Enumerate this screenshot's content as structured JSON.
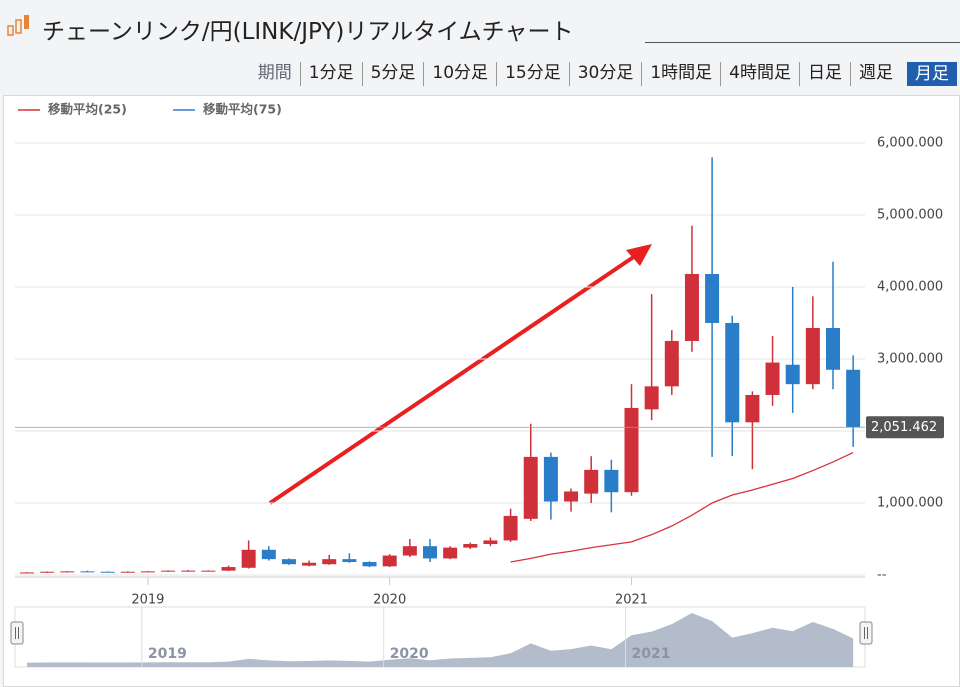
{
  "header": {
    "title": "チェーンリンク/円(LINK/JPY)リアルタイムチャート",
    "tabs": [
      "期間",
      "1分足",
      "5分足",
      "10分足",
      "15分足",
      "30分足",
      "1時間足",
      "4時間足",
      "日足",
      "週足",
      "月足"
    ],
    "active_tab": 10
  },
  "chart_data": {
    "type": "candlestick",
    "categories": [
      null,
      null,
      null,
      null,
      null,
      null,
      "2019",
      null,
      null,
      null,
      null,
      null,
      null,
      null,
      null,
      null,
      null,
      null,
      "2020",
      null,
      null,
      null,
      null,
      null,
      null,
      null,
      null,
      null,
      null,
      null,
      "2021",
      null,
      null,
      null,
      null,
      null,
      null,
      null,
      null,
      null,
      null,
      null
    ],
    "open": [
      30,
      35,
      45,
      50,
      45,
      40,
      45,
      50,
      60,
      60,
      60,
      100,
      350,
      220,
      130,
      150,
      220,
      180,
      120,
      270,
      400,
      230,
      380,
      430,
      480,
      780,
      1640,
      1020,
      1130,
      1460,
      1150,
      2300,
      2620,
      3250,
      4180,
      3500,
      2120,
      2500,
      2920,
      2650,
      3430,
      2850
    ],
    "high": [
      40,
      50,
      55,
      60,
      50,
      50,
      55,
      65,
      70,
      65,
      130,
      480,
      400,
      230,
      200,
      280,
      300,
      190,
      290,
      500,
      500,
      400,
      450,
      520,
      920,
      2100,
      1700,
      1200,
      1650,
      1600,
      2650,
      3900,
      3400,
      4850,
      5800,
      3600,
      2550,
      3320,
      4000,
      3870,
      4350,
      3050
    ],
    "low": [
      25,
      30,
      40,
      40,
      35,
      35,
      40,
      45,
      50,
      50,
      55,
      90,
      200,
      140,
      120,
      140,
      170,
      110,
      110,
      250,
      180,
      220,
      360,
      400,
      460,
      750,
      770,
      880,
      1000,
      870,
      1100,
      2150,
      2500,
      3100,
      1640,
      1650,
      1470,
      2350,
      2250,
      2580,
      2580,
      1780
    ],
    "close": [
      35,
      45,
      50,
      45,
      40,
      45,
      50,
      60,
      60,
      60,
      110,
      350,
      220,
      150,
      170,
      220,
      180,
      120,
      270,
      400,
      230,
      380,
      430,
      480,
      820,
      1640,
      1020,
      1160,
      1460,
      1150,
      2320,
      2620,
      3250,
      4180,
      3500,
      2120,
      2500,
      2950,
      2650,
      3430,
      2850,
      2051.462
    ],
    "up_color": "#d0303a",
    "down_color": "#2a7dc9",
    "series": [
      {
        "name": "移動平均(25)",
        "color": "#d9323a",
        "values": [
          null,
          null,
          null,
          null,
          null,
          null,
          null,
          null,
          null,
          null,
          null,
          null,
          null,
          null,
          null,
          null,
          null,
          null,
          null,
          null,
          null,
          null,
          null,
          null,
          180,
          230,
          290,
          330,
          380,
          420,
          460,
          560,
          680,
          830,
          1000,
          1110,
          1180,
          1260,
          1340,
          1450,
          1570,
          1700
        ]
      },
      {
        "name": "移動平均(75)",
        "color": "#2f7fc6",
        "values": [
          null,
          null,
          null,
          null,
          null,
          null,
          null,
          null,
          null,
          null,
          null,
          null,
          null,
          null,
          null,
          null,
          null,
          null,
          null,
          null,
          null,
          null,
          null,
          null,
          null,
          null,
          null,
          null,
          null,
          null,
          null,
          null,
          null,
          null,
          null,
          null,
          null,
          null,
          null,
          null,
          null,
          null
        ]
      }
    ],
    "ylim": [
      -28,
      6152
    ],
    "yticks": [
      {
        "value": 0,
        "label": "--"
      },
      {
        "value": 1000,
        "label": "1,000.000"
      },
      {
        "value": 2000,
        "label": "2,000.000"
      },
      {
        "value": 3000,
        "label": "3,000.000"
      },
      {
        "value": 4000,
        "label": "4,000.000"
      },
      {
        "value": 5000,
        "label": "5,000.000"
      },
      {
        "value": 6000,
        "label": "6,000.000"
      }
    ],
    "current_price": {
      "value": 2051.462,
      "label": "2,051.462"
    },
    "grid": true
  }
}
